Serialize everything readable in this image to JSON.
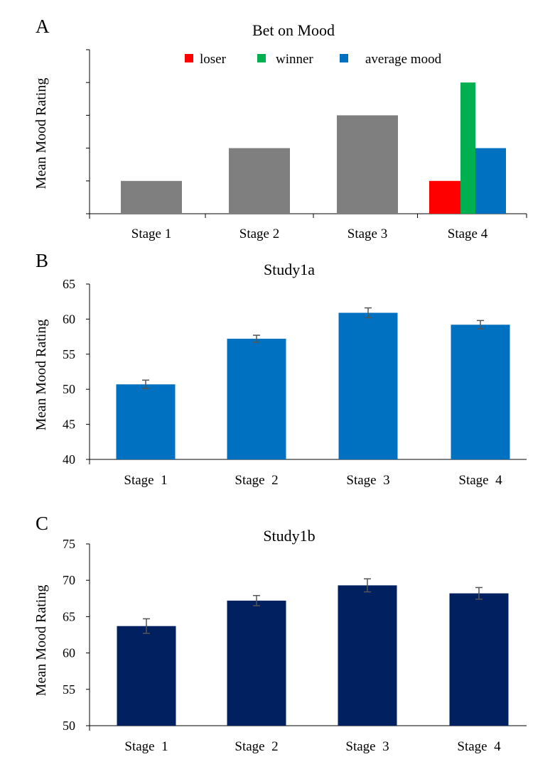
{
  "chart_data": [
    {
      "panel": "A",
      "type": "bar",
      "title": "Bet on Mood",
      "ylabel": "Mean Mood Rating",
      "xlabel": "",
      "ylim": [
        0,
        5
      ],
      "y_ticks_labeled": false,
      "categories": [
        "Stage 1",
        "Stage 2",
        "Stage 3",
        "Stage 4"
      ],
      "values": [
        1,
        2,
        3,
        null
      ],
      "bar_color": "#7f7f7f",
      "stage4_bars": [
        {
          "name": "loser",
          "value": 1,
          "color": "#ff0000"
        },
        {
          "name": "winner",
          "value": 4,
          "color": "#00b050"
        },
        {
          "name": "average mood",
          "value": 2,
          "color": "#0070c0"
        }
      ],
      "legend": [
        {
          "label": "loser",
          "color": "#ff0000"
        },
        {
          "label": "winner",
          "color": "#00b050"
        },
        {
          "label": "average mood",
          "color": "#0070c0"
        }
      ],
      "legend_position": "top"
    },
    {
      "panel": "B",
      "type": "bar",
      "title": "Study1a",
      "ylabel": "Mean Mood Rating",
      "xlabel": "",
      "ylim": [
        40,
        65
      ],
      "yticks": [
        40,
        45,
        50,
        55,
        60,
        65
      ],
      "categories": [
        "Stage  1",
        "Stage  2",
        "Stage  3",
        "Stage  4"
      ],
      "values": [
        50.7,
        57.2,
        60.9,
        59.2
      ],
      "errors": [
        0.6,
        0.5,
        0.7,
        0.6
      ],
      "bar_color": "#0070c0"
    },
    {
      "panel": "C",
      "type": "bar",
      "title": "Study1b",
      "ylabel": "Mean Mood Rating",
      "xlabel": "",
      "ylim": [
        50,
        75
      ],
      "yticks": [
        50,
        55,
        60,
        65,
        70,
        75
      ],
      "categories": [
        "Stage  1",
        "Stage  2",
        "Stage  3",
        "Stage  4"
      ],
      "values": [
        63.7,
        67.2,
        69.3,
        68.2
      ],
      "errors": [
        1.0,
        0.7,
        0.9,
        0.8
      ],
      "bar_color": "#002060"
    }
  ]
}
